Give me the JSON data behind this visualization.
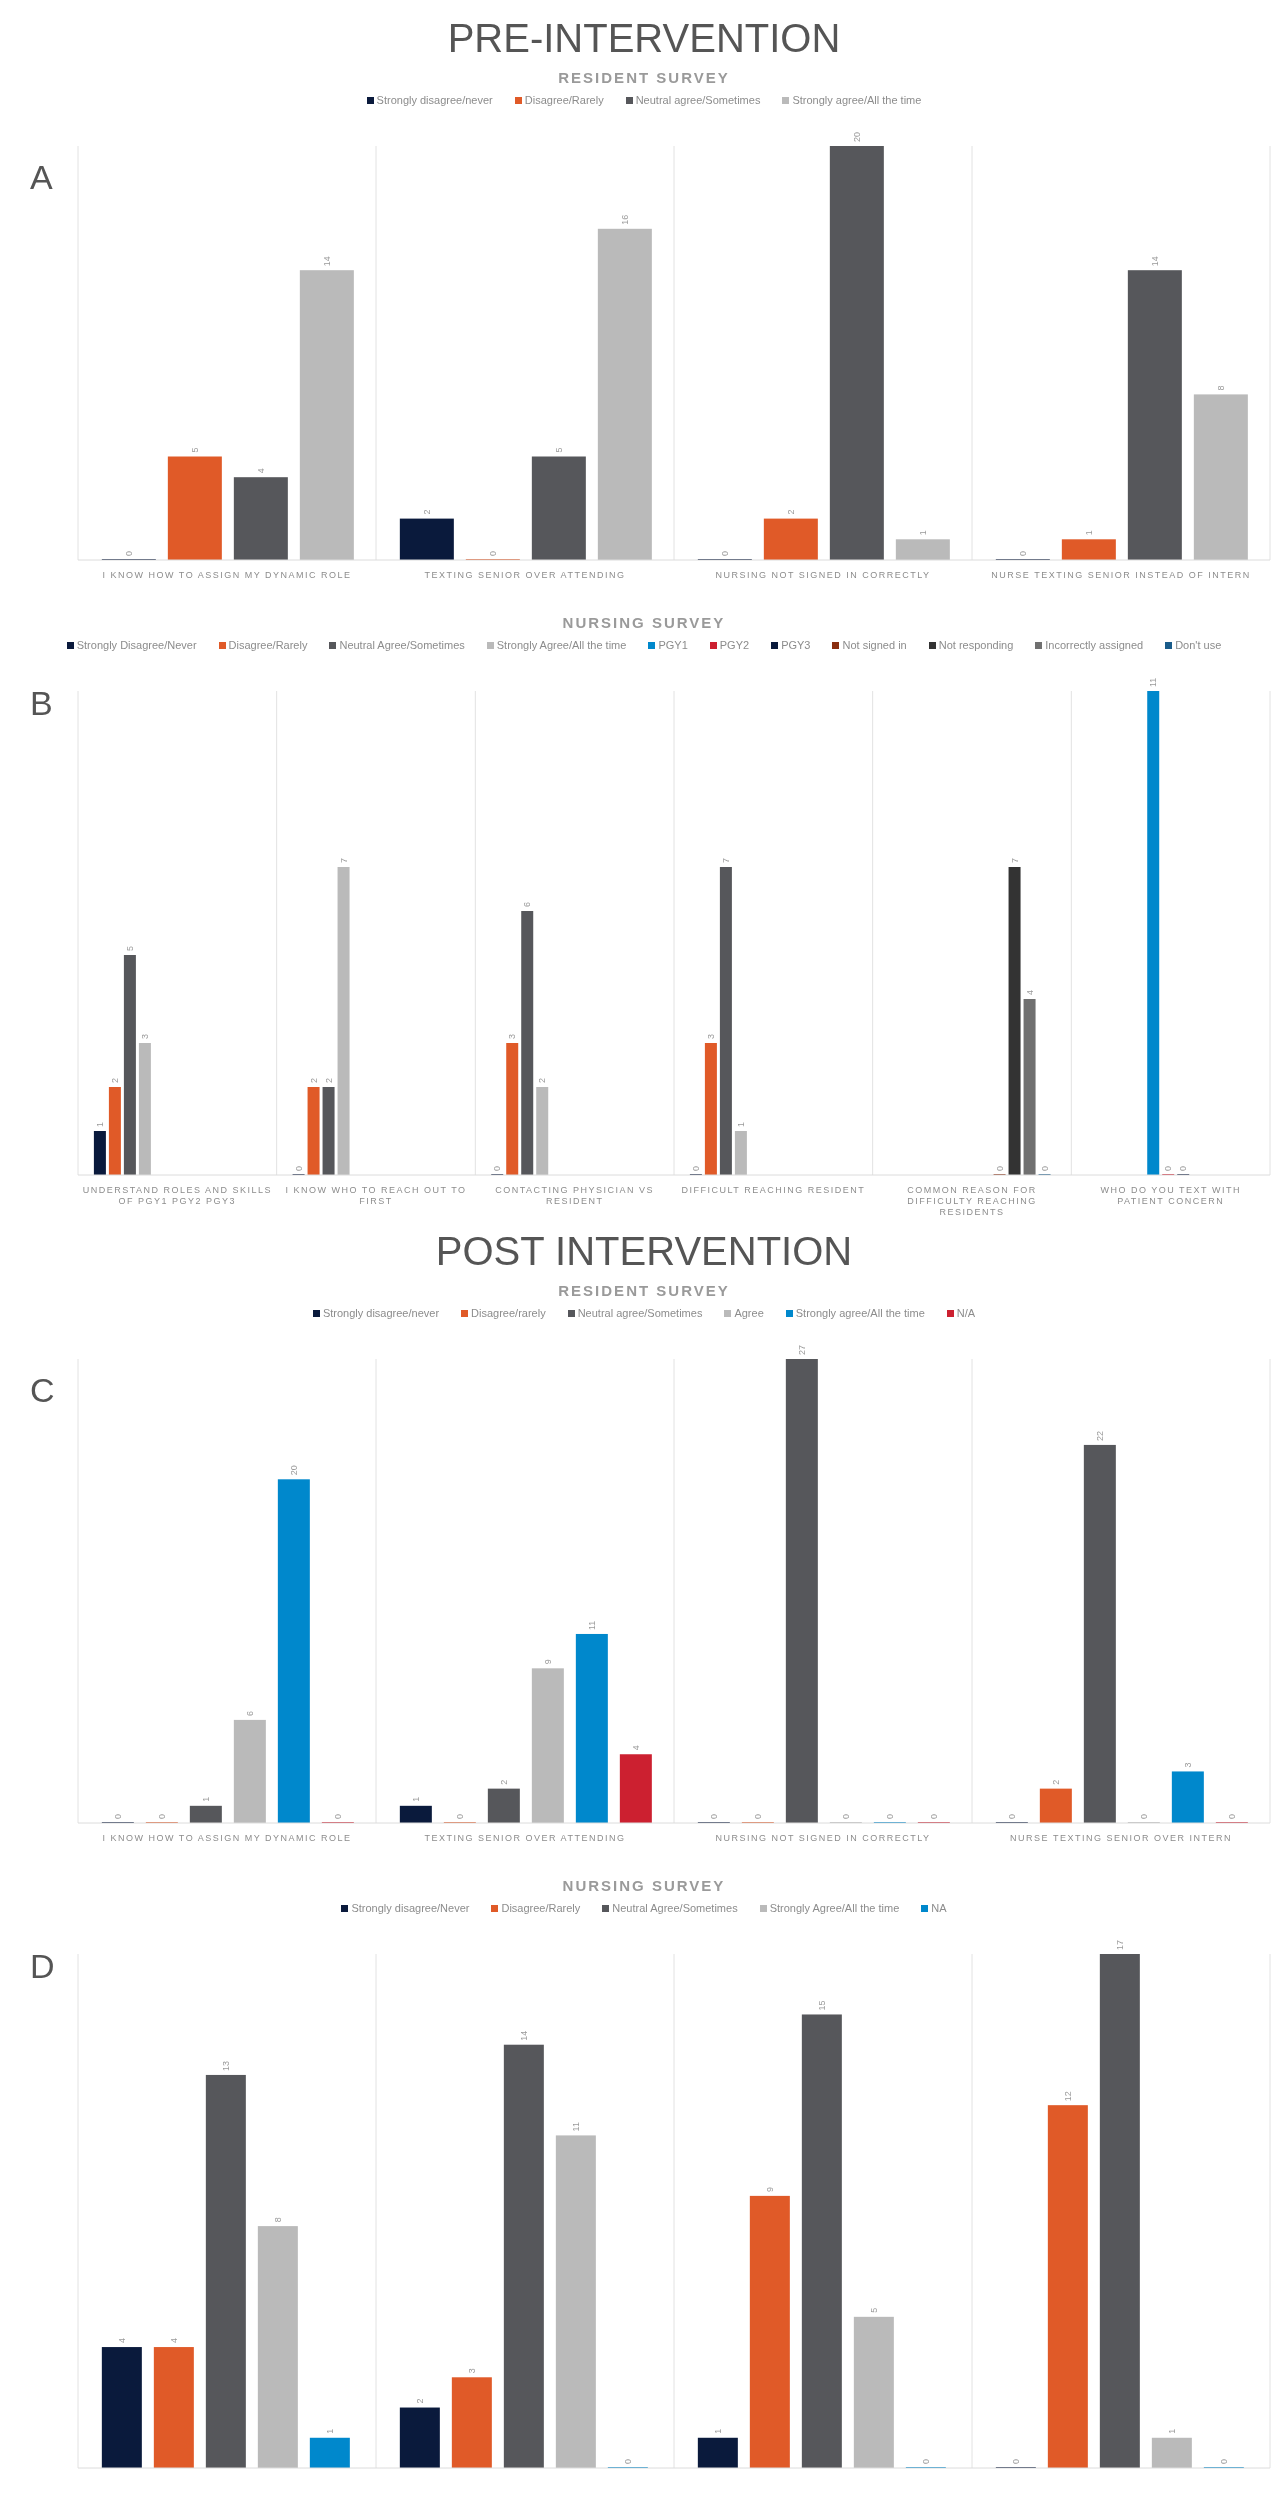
{
  "chart_data": [
    {
      "type": "bar",
      "title": "PRE-INTERVENTION",
      "subtitle": "RESIDENT SURVEY",
      "annotations": [
        "A"
      ],
      "categories": [
        "I KNOW HOW TO ASSIGN MY DYNAMIC ROLE",
        "TEXTING SENIOR OVER ATTENDING",
        "NURSING NOT SIGNED IN CORRECTLY",
        "NURSE TEXTING SENIOR INSTEAD OF INTERN"
      ],
      "series": [
        {
          "name": "Strongly disagree/never",
          "color": "#0a1a3c",
          "values": [
            0,
            2,
            0,
            0
          ]
        },
        {
          "name": "Disagree/Rarely",
          "color": "#e05a28",
          "values": [
            5,
            0,
            2,
            1
          ]
        },
        {
          "name": "Neutral agree/Sometimes",
          "color": "#56575b",
          "values": [
            4,
            5,
            20,
            14
          ]
        },
        {
          "name": "Strongly agree/All the time",
          "color": "#bababa",
          "values": [
            14,
            16,
            1,
            8
          ]
        }
      ],
      "data_labels": true,
      "legend": "top",
      "grid": "x",
      "tick_labels": "x"
    },
    {
      "type": "bar",
      "subtitle": "NURSING SURVEY",
      "annotations": [
        "B"
      ],
      "categories": [
        "UNDERSTAND ROLES AND SKILLS OF PGY1 PGY2 PGY3",
        "I KNOW WHO TO REACH OUT TO FIRST",
        "CONTACTING PHYSICIAN VS RESIDENT",
        "DIFFICULT REACHING RESIDENT",
        "COMMON REASON FOR DIFFICULTY REACHING RESIDENTS",
        "WHO DO YOU TEXT WITH PATIENT CONCERN"
      ],
      "series": [
        {
          "name": "Strongly Disagree/Never",
          "color": "#0a1a3c",
          "values": [
            1,
            0,
            0,
            0,
            null,
            null
          ]
        },
        {
          "name": "Disagree/Rarely",
          "color": "#e05a28",
          "values": [
            2,
            2,
            3,
            3,
            null,
            null
          ]
        },
        {
          "name": "Neutral Agree/Sometimes",
          "color": "#56575b",
          "values": [
            5,
            2,
            6,
            7,
            null,
            null
          ]
        },
        {
          "name": "Strongly Agree/All the time",
          "color": "#bababa",
          "values": [
            3,
            7,
            2,
            1,
            null,
            null
          ]
        },
        {
          "name": "PGY1",
          "color": "#0088cc",
          "values": [
            null,
            null,
            null,
            null,
            null,
            11
          ]
        },
        {
          "name": "PGY2",
          "color": "#cc2030",
          "values": [
            null,
            null,
            null,
            null,
            null,
            0
          ]
        },
        {
          "name": "PGY3",
          "color": "#0a1a3c",
          "values": [
            null,
            null,
            null,
            null,
            null,
            0
          ]
        },
        {
          "name": "Not signed in",
          "color": "#8a2e10",
          "values": [
            null,
            null,
            null,
            null,
            0,
            null
          ]
        },
        {
          "name": "Not responding",
          "color": "#333333",
          "values": [
            null,
            null,
            null,
            null,
            7,
            null
          ]
        },
        {
          "name": "Incorrectly assigned",
          "color": "#707070",
          "values": [
            null,
            null,
            null,
            null,
            4,
            null
          ]
        },
        {
          "name": "Don't use",
          "color": "#1a5c8a",
          "values": [
            null,
            null,
            null,
            null,
            0,
            null
          ]
        }
      ],
      "data_labels": true,
      "legend": "top",
      "grid": "x",
      "tick_labels": "x"
    },
    {
      "type": "bar",
      "title": "POST INTERVENTION",
      "subtitle": "RESIDENT SURVEY",
      "annotations": [
        "C"
      ],
      "categories": [
        "I KNOW HOW TO ASSIGN MY DYNAMIC ROLE",
        "TEXTING SENIOR OVER ATTENDING",
        "NURSING NOT SIGNED IN CORRECTLY",
        "NURSE TEXTING SENIOR OVER INTERN"
      ],
      "series": [
        {
          "name": "Strongly disagree/never",
          "color": "#0a1a3c",
          "values": [
            0,
            1,
            0,
            0
          ]
        },
        {
          "name": "Disagree/rarely",
          "color": "#e05a28",
          "values": [
            0,
            0,
            0,
            2
          ]
        },
        {
          "name": "Neutral agree/Sometimes",
          "color": "#56575b",
          "values": [
            1,
            2,
            27,
            22
          ]
        },
        {
          "name": "Agree",
          "color": "#bababa",
          "values": [
            6,
            9,
            0,
            0
          ]
        },
        {
          "name": "Strongly agree/All the time",
          "color": "#0088cc",
          "values": [
            20,
            11,
            0,
            3
          ]
        },
        {
          "name": "N/A",
          "color": "#cc2030",
          "values": [
            0,
            4,
            0,
            0
          ]
        }
      ],
      "data_labels": true,
      "legend": "top",
      "grid": "x",
      "tick_labels": "x"
    },
    {
      "type": "bar",
      "subtitle": "NURSING SURVEY",
      "annotations": [
        "D"
      ],
      "categories": [
        null,
        null,
        null,
        null
      ],
      "series": [
        {
          "name": "Strongly disagree/Never",
          "color": "#0a1a3c",
          "values": [
            4,
            2,
            1,
            0
          ]
        },
        {
          "name": "Disagree/Rarely",
          "color": "#e05a28",
          "values": [
            4,
            3,
            9,
            12
          ]
        },
        {
          "name": "Neutral Agree/Sometimes",
          "color": "#56575b",
          "values": [
            13,
            14,
            15,
            17
          ]
        },
        {
          "name": "Strongly Agree/All the time",
          "color": "#bababa",
          "values": [
            8,
            11,
            5,
            1
          ]
        },
        {
          "name": "NA",
          "color": "#0088cc",
          "values": [
            1,
            0,
            0,
            0
          ]
        }
      ],
      "data_labels": true,
      "legend": "top",
      "grid": "x",
      "tick_labels": "x"
    }
  ]
}
